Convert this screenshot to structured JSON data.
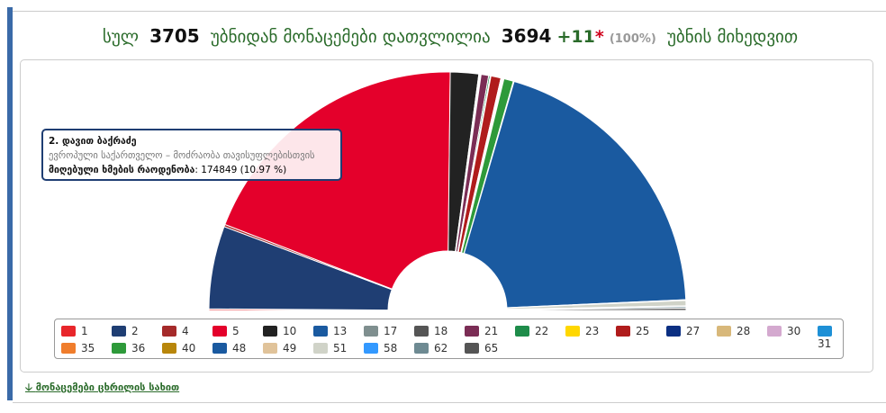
{
  "header": {
    "total_label": "სულ",
    "total": 3705,
    "middle": "უბნიდან მონაცემები დათვლილია",
    "counted": 3694,
    "extra": "+11",
    "star": "*",
    "percent": "(100%)",
    "tail": "უბნის მიხედვით"
  },
  "chart_data": {
    "type": "pie",
    "half": true,
    "categories": [
      "1",
      "2",
      "4",
      "5",
      "10",
      "13",
      "17",
      "18",
      "21",
      "22",
      "23",
      "25",
      "27",
      "28",
      "30",
      "31",
      "35",
      "36",
      "40",
      "48",
      "49",
      "51",
      "58",
      "62",
      "65"
    ],
    "values": [
      0.2,
      10.97,
      0.3,
      37.73,
      3.74,
      0.1,
      0.1,
      0.1,
      1.0,
      0.2,
      0.1,
      1.33,
      0.05,
      0.1,
      0.05,
      0.1,
      0.1,
      1.27,
      0.1,
      38.64,
      0.1,
      0.7,
      0.1,
      0.2,
      0.3
    ],
    "colors": [
      "#e8262b",
      "#1f3e73",
      "#a52a2a",
      "#e4002b",
      "#222222",
      "#1a5aa0",
      "#7f8f8f",
      "#555555",
      "#7b2d55",
      "#1e8c4a",
      "#ffd700",
      "#b01c1c",
      "#0b2f82",
      "#d8b87a",
      "#d4a9cf",
      "#1e90d6",
      "#f07d2c",
      "#2e9a3a",
      "#b8860b",
      "#1a5aa0",
      "#e0c39a",
      "#d0d3c8",
      "#3399ff",
      "#6e8a92",
      "#555555"
    ]
  },
  "tooltip": {
    "title": "2. დავით ბაქრაძე",
    "party": "ევროპული საქართველო – მოძრაობა თავისუფლებისთვის",
    "votes_label": "მიღებული ხმების რაოდენობა",
    "votes_text": ": 174849 (10.97 %)"
  },
  "link": "მონაცემები ცხრილის სახით"
}
